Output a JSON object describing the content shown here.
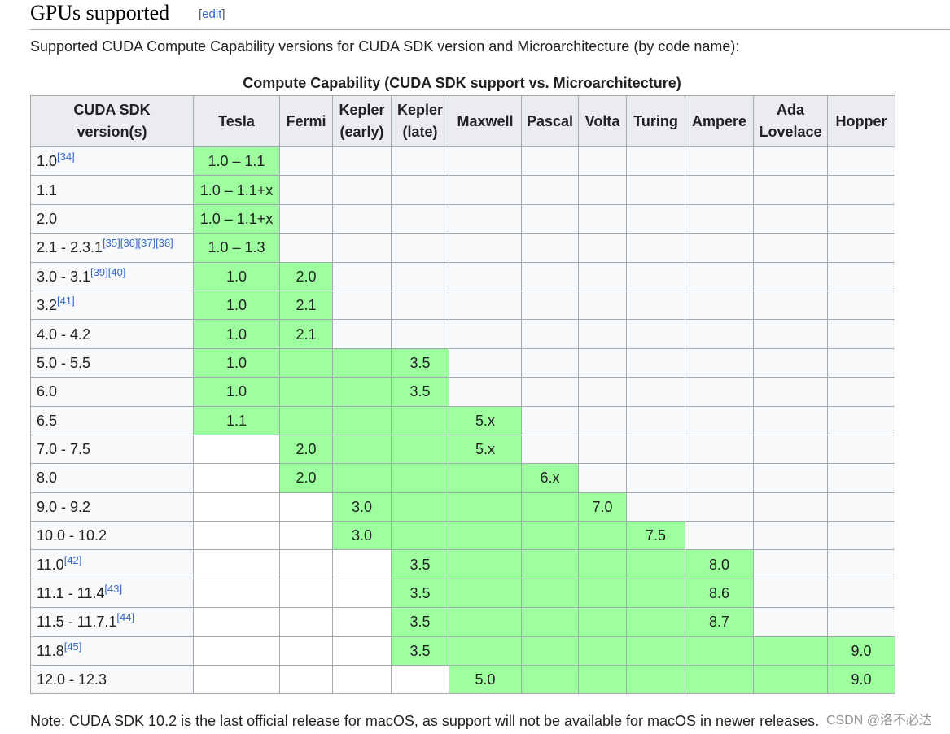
{
  "section": {
    "title": "GPUs supported",
    "edit_open": "[",
    "edit_label": "edit",
    "edit_close": "]"
  },
  "intro": "Supported CUDA Compute Capability versions for CUDA SDK version and Microarchitecture (by code name):",
  "table": {
    "caption": "Compute Capability (CUDA SDK support vs. Microarchitecture)",
    "headers": [
      [
        "CUDA SDK",
        "version(s)"
      ],
      [
        "Tesla"
      ],
      [
        "Fermi"
      ],
      [
        "Kepler",
        "(early)"
      ],
      [
        "Kepler",
        "(late)"
      ],
      [
        "Maxwell"
      ],
      [
        "Pascal"
      ],
      [
        "Volta"
      ],
      [
        "Turing"
      ],
      [
        "Ampere"
      ],
      [
        "Ada",
        "Lovelace"
      ],
      [
        "Hopper"
      ]
    ],
    "rows": [
      {
        "version": "1.0",
        "refs": "[34]",
        "cells": [
          {
            "v": "1.0 – 1.1",
            "g": true
          },
          {},
          {},
          {},
          {},
          {},
          {},
          {},
          {},
          {},
          {}
        ]
      },
      {
        "version": "1.1",
        "refs": "",
        "cells": [
          {
            "v": "1.0 – 1.1+x",
            "g": true
          },
          {},
          {},
          {},
          {},
          {},
          {},
          {},
          {},
          {},
          {}
        ]
      },
      {
        "version": "2.0",
        "refs": "",
        "cells": [
          {
            "v": "1.0 – 1.1+x",
            "g": true
          },
          {},
          {},
          {},
          {},
          {},
          {},
          {},
          {},
          {},
          {}
        ]
      },
      {
        "version": "2.1 - 2.3.1",
        "refs": "[35][36][37][38]",
        "cells": [
          {
            "v": "1.0 – 1.3",
            "g": true
          },
          {},
          {},
          {},
          {},
          {},
          {},
          {},
          {},
          {},
          {}
        ]
      },
      {
        "version": "3.0 - 3.1",
        "refs": "[39][40]",
        "cells": [
          {
            "v": "1.0",
            "g": true
          },
          {
            "v": "2.0",
            "g": true
          },
          {},
          {},
          {},
          {},
          {},
          {},
          {},
          {},
          {}
        ]
      },
      {
        "version": "3.2",
        "refs": "[41]",
        "cells": [
          {
            "v": "1.0",
            "g": true
          },
          {
            "v": "2.1",
            "g": true
          },
          {},
          {},
          {},
          {},
          {},
          {},
          {},
          {},
          {}
        ]
      },
      {
        "version": "4.0 - 4.2",
        "refs": "",
        "cells": [
          {
            "v": "1.0",
            "g": true
          },
          {
            "v": "2.1",
            "g": true
          },
          {},
          {},
          {},
          {},
          {},
          {},
          {},
          {},
          {}
        ]
      },
      {
        "version": "5.0 - 5.5",
        "refs": "",
        "cells": [
          {
            "v": "1.0",
            "g": true
          },
          {
            "g": true
          },
          {
            "g": true
          },
          {
            "v": "3.5",
            "g": true
          },
          {},
          {},
          {},
          {},
          {},
          {},
          {}
        ]
      },
      {
        "version": "6.0",
        "refs": "",
        "cells": [
          {
            "v": "1.0",
            "g": true
          },
          {
            "g": true
          },
          {
            "g": true
          },
          {
            "v": "3.5",
            "g": true
          },
          {},
          {},
          {},
          {},
          {},
          {},
          {}
        ]
      },
      {
        "version": "6.5",
        "refs": "",
        "cells": [
          {
            "v": "1.1",
            "g": true
          },
          {
            "g": true
          },
          {
            "g": true
          },
          {
            "g": true
          },
          {
            "v": "5.x",
            "g": true
          },
          {},
          {},
          {},
          {},
          {},
          {}
        ]
      },
      {
        "version": "7.0 - 7.5",
        "refs": "",
        "cells": [
          {
            "w": true
          },
          {
            "v": "2.0",
            "g": true
          },
          {
            "g": true
          },
          {
            "g": true
          },
          {
            "v": "5.x",
            "g": true
          },
          {},
          {},
          {},
          {},
          {},
          {}
        ]
      },
      {
        "version": "8.0",
        "refs": "",
        "cells": [
          {
            "w": true
          },
          {
            "v": "2.0",
            "g": true
          },
          {
            "g": true
          },
          {
            "g": true
          },
          {
            "g": true
          },
          {
            "v": "6.x",
            "g": true
          },
          {},
          {},
          {},
          {},
          {}
        ]
      },
      {
        "version": "9.0 - 9.2",
        "refs": "",
        "cells": [
          {
            "w": true
          },
          {
            "w": true
          },
          {
            "v": "3.0",
            "g": true
          },
          {
            "g": true
          },
          {
            "g": true
          },
          {
            "g": true
          },
          {
            "v": "7.0",
            "g": true
          },
          {},
          {},
          {},
          {}
        ]
      },
      {
        "version": "10.0 - 10.2",
        "refs": "",
        "cells": [
          {
            "w": true
          },
          {
            "w": true
          },
          {
            "v": "3.0",
            "g": true
          },
          {
            "g": true
          },
          {
            "g": true
          },
          {
            "g": true
          },
          {
            "g": true
          },
          {
            "v": "7.5",
            "g": true
          },
          {},
          {},
          {}
        ]
      },
      {
        "version": "11.0",
        "refs": "[42]",
        "cells": [
          {
            "w": true
          },
          {
            "w": true
          },
          {
            "w": true
          },
          {
            "v": "3.5",
            "g": true
          },
          {
            "g": true
          },
          {
            "g": true
          },
          {
            "g": true
          },
          {
            "g": true
          },
          {
            "v": "8.0",
            "g": true
          },
          {},
          {}
        ]
      },
      {
        "version": "11.1 - 11.4",
        "refs": "[43]",
        "cells": [
          {
            "w": true
          },
          {
            "w": true
          },
          {
            "w": true
          },
          {
            "v": "3.5",
            "g": true
          },
          {
            "g": true
          },
          {
            "g": true
          },
          {
            "g": true
          },
          {
            "g": true
          },
          {
            "v": "8.6",
            "g": true
          },
          {},
          {}
        ]
      },
      {
        "version": "11.5 - 11.7.1",
        "refs": "[44]",
        "cells": [
          {
            "w": true
          },
          {
            "w": true
          },
          {
            "w": true
          },
          {
            "v": "3.5",
            "g": true
          },
          {
            "g": true
          },
          {
            "g": true
          },
          {
            "g": true
          },
          {
            "g": true
          },
          {
            "v": "8.7",
            "g": true
          },
          {},
          {}
        ]
      },
      {
        "version": "11.8",
        "refs": "[45]",
        "cells": [
          {
            "w": true
          },
          {
            "w": true
          },
          {
            "w": true
          },
          {
            "v": "3.5",
            "g": true
          },
          {
            "g": true
          },
          {
            "g": true
          },
          {
            "g": true
          },
          {
            "g": true
          },
          {
            "g": true
          },
          {
            "g": true
          },
          {
            "v": "9.0",
            "g": true
          }
        ]
      },
      {
        "version": "12.0 - 12.3",
        "refs": "",
        "cells": [
          {
            "w": true
          },
          {
            "w": true
          },
          {
            "w": true
          },
          {
            "w": true
          },
          {
            "v": "5.0",
            "g": true
          },
          {
            "g": true
          },
          {
            "g": true
          },
          {
            "g": true
          },
          {
            "g": true
          },
          {
            "g": true
          },
          {
            "v": "9.0",
            "g": true
          }
        ]
      }
    ]
  },
  "note": "Note: CUDA SDK 10.2 is the last official release for macOS, as support will not be available for macOS in newer releases.",
  "watermark": "CSDN @洛不必达",
  "colors": {
    "supported_cell": "#9eff9e",
    "header_bg": "#eaecf0",
    "cell_bg": "#f8f9fa",
    "link": "#3366cc",
    "border": "#a2a9b1"
  }
}
